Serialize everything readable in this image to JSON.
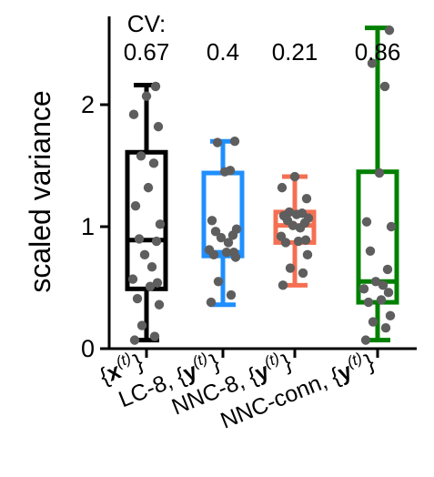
{
  "chart_data": {
    "type": "box",
    "ylabel": "scaled variance",
    "ylim": [
      0,
      2.7
    ],
    "yticks": [
      0,
      1,
      2
    ],
    "cv_header": "CV:",
    "categories": [
      {
        "id": "x",
        "prefix": "{",
        "symbol": "x",
        "sup": "(t)",
        "suffix": "}",
        "bold_symbol": true
      },
      {
        "id": "lc8",
        "prefix": "LC-8, {",
        "symbol": "y",
        "sup": "(t)",
        "suffix": "}",
        "bold_symbol": true
      },
      {
        "id": "nnc8",
        "prefix": "NNC-8, {",
        "symbol": "y",
        "sup": "(t)",
        "suffix": "}",
        "bold_symbol": true
      },
      {
        "id": "nncconn",
        "prefix": "NNC-conn, {",
        "symbol": "y",
        "sup": "(t)",
        "suffix": "}",
        "bold_symbol": true
      }
    ],
    "series": [
      {
        "cv": "0.67",
        "color": "#000000",
        "whisker_low": 0.07,
        "q1": 0.49,
        "median": 0.89,
        "q3": 1.61,
        "whisker_high": 2.16,
        "points": [
          0.07,
          0.1,
          0.19,
          0.36,
          0.41,
          0.51,
          0.54,
          0.57,
          0.67,
          0.77,
          0.88,
          0.9,
          1.02,
          1.17,
          1.32,
          1.52,
          1.58,
          1.82,
          1.92,
          2.07,
          2.15
        ]
      },
      {
        "cv": "0.4",
        "color": "#1f8fff",
        "whisker_low": 0.36,
        "q1": 0.76,
        "median": 0.79,
        "q3": 1.44,
        "whisker_high": 1.7,
        "points": [
          0.38,
          0.44,
          0.55,
          0.75,
          0.77,
          0.79,
          0.79,
          0.81,
          0.87,
          0.91,
          0.93,
          0.96,
          0.98,
          1.05,
          1.45,
          1.46,
          1.69,
          1.7
        ]
      },
      {
        "cv": "0.21",
        "color": "#f56f52",
        "whisker_low": 0.52,
        "q1": 0.87,
        "median": 1.01,
        "q3": 1.12,
        "whisker_high": 1.41,
        "points": [
          0.52,
          0.62,
          0.66,
          0.77,
          0.87,
          0.88,
          0.89,
          0.92,
          0.99,
          1.01,
          1.03,
          1.05,
          1.07,
          1.09,
          1.1,
          1.11,
          1.12,
          1.23,
          1.32,
          1.41
        ]
      },
      {
        "cv": "0.86",
        "color": "#008000",
        "whisker_low": 0.07,
        "q1": 0.38,
        "median": 0.55,
        "q3": 1.45,
        "whisker_high": 2.63,
        "points": [
          0.07,
          0.17,
          0.22,
          0.27,
          0.38,
          0.4,
          0.46,
          0.49,
          0.52,
          0.55,
          0.65,
          0.8,
          1.0,
          1.04,
          1.44,
          2.15,
          2.34,
          2.61
        ]
      }
    ],
    "point_color": "#5e5e5e",
    "grid": false,
    "legend": "none"
  }
}
